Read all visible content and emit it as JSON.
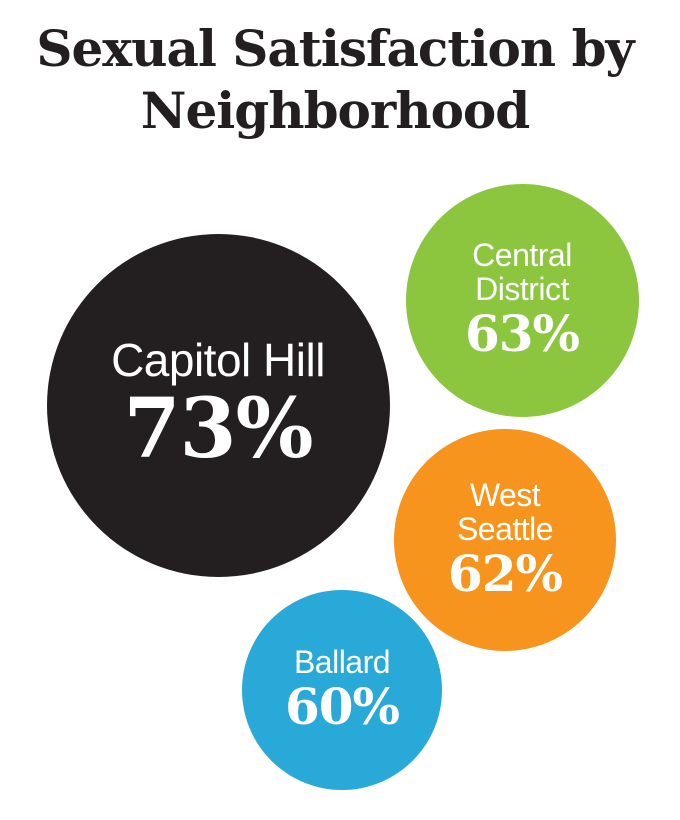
{
  "chart_data": {
    "type": "bubble",
    "title": "Sexual Satisfaction by Neighborhood",
    "categories": [
      "Capitol Hill",
      "Central District",
      "West Seattle",
      "Ballard"
    ],
    "values": [
      73,
      63,
      62,
      60
    ],
    "value_labels": [
      "73%",
      "63%",
      "62%",
      "60%"
    ],
    "colors": [
      "#231f20",
      "#8cc63f",
      "#f7941d",
      "#29a9d8"
    ]
  }
}
